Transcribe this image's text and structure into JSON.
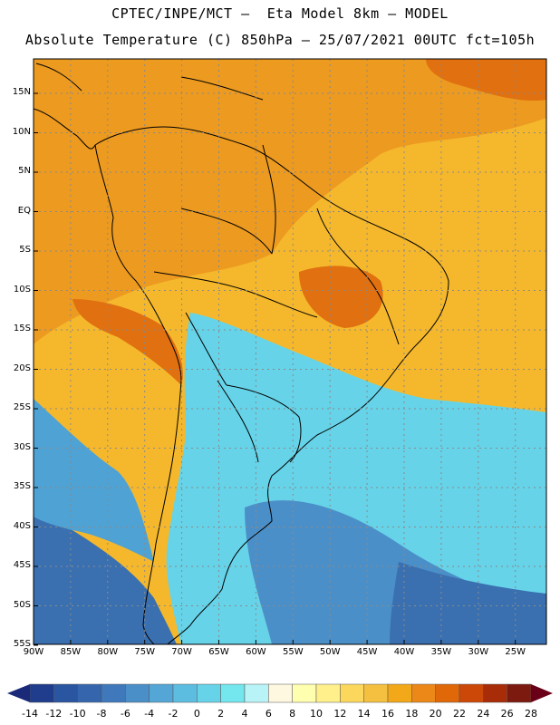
{
  "title_line1": "CPTEC/INPE/MCT –  Eta Model 8km – MODEL",
  "title_line2": "Absolute Temperature (C) 850hPa – 25/07/2021 00UTC fct=105h",
  "latitude_labels": [
    "15N",
    "10N",
    "5N",
    "EQ",
    "5S",
    "10S",
    "15S",
    "20S",
    "25S",
    "30S",
    "35S",
    "40S",
    "45S",
    "50S",
    "55S"
  ],
  "longitude_labels": [
    "90W",
    "85W",
    "80W",
    "75W",
    "70W",
    "65W",
    "60W",
    "55W",
    "50W",
    "45W",
    "40W",
    "35W",
    "30W",
    "25W"
  ],
  "colorbar": {
    "labels": [
      "-14",
      "-12",
      "-10",
      "-8",
      "-6",
      "-4",
      "-2",
      "0",
      "2",
      "4",
      "6",
      "8",
      "10",
      "12",
      "14",
      "16",
      "18",
      "20",
      "22",
      "24",
      "26",
      "28"
    ],
    "colors": [
      "#1f3d8c",
      "#2a55a0",
      "#3566ad",
      "#3f79bb",
      "#4b8fc8",
      "#54a6d6",
      "#5cbde0",
      "#66d3e8",
      "#74e6ee",
      "#b8f4f7",
      "#fff8e0",
      "#ffffb0",
      "#fff08c",
      "#fbd85c",
      "#f5c040",
      "#f2a818",
      "#ec8818",
      "#e06808",
      "#cc4808",
      "#a82c08",
      "#7c1a10"
    ],
    "low_arrow_color": "#1a2a78",
    "high_arrow_color": "#6a0018"
  },
  "map_colors": {
    "ocean_south": "#3a70b0",
    "ocean_mid": "#4fa2d4",
    "cold_tongue": "#66d3e8",
    "cold_core": "#4b8fc8",
    "tropical": "#f5b82c",
    "tropical_warm": "#ec9a20",
    "hot": "#e07010",
    "coast_line": "#000000",
    "grid_line": "#8a8a8a"
  }
}
